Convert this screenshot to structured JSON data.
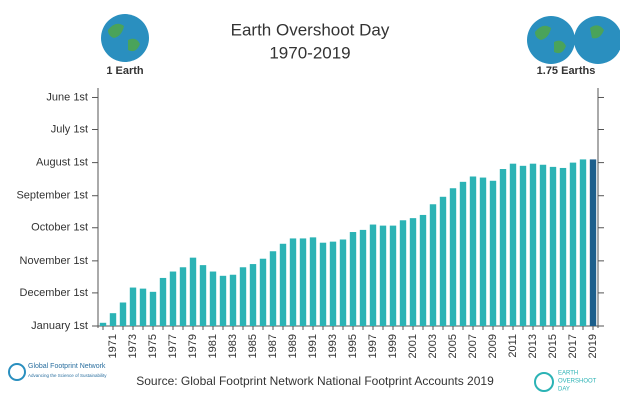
{
  "chart_data": {
    "type": "bar",
    "title": "Earth Overshoot Day",
    "subtitle": "1970-2019",
    "left_icon_label": "1 Earth",
    "right_icon_label": "1.75 Earths",
    "source": "Source: Global Footprint Network National Footprint Accounts 2019",
    "logo_left": {
      "name": "Global Footprint Network",
      "tagline": "Advancing the Science of Sustainability"
    },
    "logo_right": [
      "EARTH",
      "OVERSHOOT",
      "DAY"
    ],
    "categories": [
      "1970",
      "1971",
      "1972",
      "1973",
      "1974",
      "1975",
      "1976",
      "1977",
      "1978",
      "1979",
      "1980",
      "1981",
      "1982",
      "1983",
      "1984",
      "1985",
      "1986",
      "1987",
      "1988",
      "1989",
      "1990",
      "1991",
      "1992",
      "1993",
      "1994",
      "1995",
      "1996",
      "1997",
      "1998",
      "1999",
      "2000",
      "2001",
      "2002",
      "2003",
      "2004",
      "2005",
      "2006",
      "2007",
      "2008",
      "2009",
      "2010",
      "2011",
      "2012",
      "2013",
      "2014",
      "2015",
      "2016",
      "2017",
      "2018",
      "2019"
    ],
    "category_labels": [
      null,
      "1971",
      null,
      "1973",
      null,
      "1975",
      null,
      "1977",
      null,
      "1979",
      null,
      "1981",
      null,
      "1983",
      null,
      "1985",
      null,
      "1987",
      null,
      "1989",
      null,
      "1991",
      null,
      "1993",
      null,
      "1995",
      null,
      "1997",
      null,
      "1999",
      null,
      "2001",
      null,
      "2003",
      null,
      "2005",
      null,
      "2007",
      null,
      "2009",
      null,
      "2011",
      null,
      "2013",
      null,
      "2015",
      null,
      "2017",
      null,
      "2019"
    ],
    "values": [
      363,
      354,
      344,
      330,
      331,
      334,
      321,
      315,
      311,
      302,
      309,
      315,
      319,
      318,
      311,
      308,
      303,
      296,
      289,
      284,
      284,
      283,
      288,
      287,
      285,
      278,
      276,
      271,
      272,
      272,
      267,
      265,
      262,
      252,
      245,
      237,
      231,
      226,
      227,
      230,
      219,
      214,
      216,
      214,
      215,
      217,
      218,
      213,
      210,
      210
    ],
    "color": "#2bb3b5",
    "last_color": "#1d5f8c",
    "ylim": [
      366,
      145
    ],
    "yticks": [
      {
        "value": 152,
        "label": "June 1st"
      },
      {
        "value": 182,
        "label": "July 1st"
      },
      {
        "value": 213,
        "label": "August 1st"
      },
      {
        "value": 244,
        "label": "September 1st"
      },
      {
        "value": 274,
        "label": "October 1st"
      },
      {
        "value": 305,
        "label": "November 1st"
      },
      {
        "value": 335,
        "label": "December 1st"
      },
      {
        "value": 366,
        "label": "January 1st"
      }
    ],
    "grid": false
  }
}
